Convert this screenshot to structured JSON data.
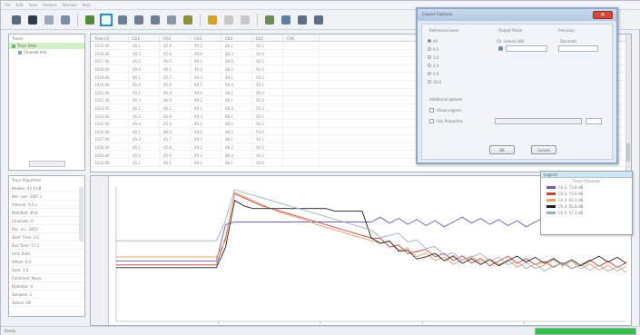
{
  "menubar": {
    "items": [
      "File",
      "Edit",
      "View",
      "Analyze",
      "Window",
      "Help"
    ]
  },
  "toolbar": {
    "buttons": [
      {
        "icon": "arrow-icon",
        "color": "#5a6b80"
      },
      {
        "icon": "save-icon",
        "color": "#2f3a4a"
      },
      {
        "icon": "page-icon",
        "color": "#9aa7b6"
      },
      {
        "icon": "sort-icon",
        "color": "#7d8fa6"
      },
      {
        "icon": "table-icon",
        "color": "#4f8a3a"
      },
      {
        "icon": "chart-icon",
        "color": "#3aa0c8",
        "active": true
      },
      {
        "icon": "grid-icon",
        "color": "#6d7f95"
      },
      {
        "icon": "grid2-icon",
        "color": "#6d7f95"
      },
      {
        "icon": "grid3-icon",
        "color": "#6d7f95"
      },
      {
        "icon": "window-icon",
        "color": "#8b98a8"
      },
      {
        "icon": "filter-icon",
        "color": "#8c8f3a"
      },
      {
        "icon": "warning-icon",
        "color": "#d8a22a"
      },
      {
        "icon": "pen-icon",
        "color": "#c8c8c8"
      },
      {
        "icon": "pen2-icon",
        "color": "#c8c8c8"
      },
      {
        "icon": "data-icon",
        "color": "#6e8a5a"
      },
      {
        "icon": "export-icon",
        "color": "#5e7fa3"
      },
      {
        "icon": "link-icon",
        "color": "#5f6f83"
      },
      {
        "icon": "print-icon",
        "color": "#5f6f83"
      }
    ]
  },
  "tree": {
    "header": "Traces",
    "items": [
      "Trace Data",
      "Channel Info"
    ]
  },
  "properties": {
    "header": "Trace Properties",
    "rows": [
      "Header: 42.0 kB",
      "Rec. Len: 1007 s",
      "Interval: 0.5 s",
      "Modified: 40.0",
      "Channels: 6",
      "Rec. no.: 3452",
      "Start Time: 2.0",
      "End Time: 57.2",
      "Unit: Rate",
      "Offset: 0.0",
      "Gain: 1.0",
      "Comment: None",
      "Operator: 4",
      "Samples: 1",
      "Status: OK"
    ]
  },
  "grid": {
    "headers": [
      "Time [s]",
      "Ch1",
      "Ch2",
      "Ch3",
      "Ch4",
      "Ch5",
      "Ch6"
    ],
    "rows": [
      [
        "1015.00",
        "40.1",
        "45.8",
        "49.2",
        "48.1",
        "50.2",
        ""
      ],
      [
        "1016.00",
        "40.3",
        "45.9",
        "49.0",
        "48.3",
        "50.0",
        ""
      ],
      [
        "1017.00",
        "40.2",
        "46.0",
        "49.1",
        "48.0",
        "50.1",
        ""
      ],
      [
        "1018.00",
        "40.4",
        "46.1",
        "49.2",
        "48.2",
        "50.3",
        ""
      ],
      [
        "1019.00",
        "40.1",
        "45.7",
        "49.3",
        "48.1",
        "50.2",
        ""
      ],
      [
        "1020.00",
        "40.0",
        "45.8",
        "49.1",
        "48.4",
        "50.1",
        ""
      ],
      [
        "1021.00",
        "40.2",
        "45.9",
        "49.0",
        "48.2",
        "50.0",
        ""
      ],
      [
        "1022.00",
        "40.3",
        "46.0",
        "49.2",
        "48.1",
        "50.2",
        ""
      ],
      [
        "1023.00",
        "40.1",
        "46.1",
        "49.1",
        "48.3",
        "50.3",
        ""
      ],
      [
        "1024.00",
        "40.2",
        "45.8",
        "49.3",
        "48.2",
        "50.1",
        ""
      ],
      [
        "1025.00",
        "40.4",
        "45.9",
        "49.2",
        "48.0",
        "50.2",
        ""
      ],
      [
        "1026.00",
        "40.1",
        "46.0",
        "49.0",
        "48.3",
        "50.0",
        ""
      ],
      [
        "1027.00",
        "40.3",
        "45.7",
        "49.1",
        "48.1",
        "50.1",
        ""
      ],
      [
        "1028.00",
        "40.2",
        "45.8",
        "49.2",
        "48.2",
        "50.3",
        ""
      ],
      [
        "1029.00",
        "40.0",
        "45.9",
        "49.3",
        "48.4",
        "50.2",
        ""
      ],
      [
        "1030.00",
        "40.1",
        "46.1",
        "49.1",
        "48.1",
        "50.0",
        ""
      ]
    ]
  },
  "dialog": {
    "title": "Export Options",
    "close": "✕",
    "col1_label": "Reference Level",
    "col2_label": "Output Mode",
    "col3_label": "Precision",
    "radios": [
      "All",
      "0.5",
      "1.0",
      "2.0",
      "5.0",
      "10.0"
    ],
    "col2_sub": "Ch. values (dB)",
    "col3_sub": "Decimals",
    "group_label": "Additional options",
    "check1": "Show Legend",
    "check2": "Use Properties",
    "ok": "OK",
    "cancel": "Cancel"
  },
  "legend": {
    "header": "Legend",
    "sub": "Trace Channels",
    "items": [
      {
        "label": "Ch.1: 73.8 dB",
        "color": "#6b5fb5"
      },
      {
        "label": "Ch.2: 73.9 dB",
        "color": "#c8443b"
      },
      {
        "label": "Ch.3: 61.4 dB",
        "color": "#e8a06a"
      },
      {
        "label": "Ch.4: 55.8 dB",
        "color": "#1f1f1f"
      },
      {
        "label": "Ch.5: 57.1 dB",
        "color": "#9ab0c7"
      }
    ]
  },
  "chart_data": {
    "type": "line",
    "x": [
      0,
      10,
      20,
      30,
      40,
      50,
      60,
      70,
      80,
      90,
      100,
      110,
      120,
      130,
      140,
      150,
      160,
      170,
      180,
      190,
      200,
      210,
      220,
      230,
      240,
      250,
      260,
      270,
      280,
      290,
      300,
      310,
      320,
      330,
      340,
      350,
      360,
      370,
      380,
      390,
      400,
      410,
      420,
      430,
      440,
      450,
      460,
      470,
      480,
      490,
      500,
      510,
      520,
      530,
      540,
      550,
      560
    ],
    "series": [
      {
        "name": "Ch.1: 73.8 dB",
        "color": "#6b5fb5",
        "values": [
          45,
          45,
          45,
          45,
          45,
          45,
          45,
          45,
          45,
          45,
          45,
          45,
          72,
          74,
          74,
          74,
          74,
          74,
          74,
          74,
          74,
          74,
          74,
          74,
          74,
          74,
          74,
          74,
          74,
          74,
          74,
          74,
          74,
          74,
          74,
          74,
          74,
          74,
          74,
          74,
          74,
          74,
          74,
          74,
          74,
          74,
          74,
          74,
          74,
          74,
          74,
          74,
          74,
          74,
          74,
          74,
          74
        ]
      },
      {
        "name": "Ch.2: 73.9 dB",
        "color": "#c8443b",
        "values": [
          42,
          42,
          42,
          42,
          42,
          42,
          42,
          42,
          42,
          42,
          42,
          42,
          62,
          95,
          92,
          89,
          86,
          84,
          82,
          80,
          78,
          76,
          74,
          72,
          70,
          68,
          66,
          64,
          62,
          60,
          58,
          56,
          54,
          52,
          50,
          49,
          48,
          47,
          47,
          46,
          46,
          45,
          45,
          45,
          44,
          44,
          44,
          43,
          43,
          43,
          43,
          42,
          42,
          42,
          42,
          42,
          42
        ]
      },
      {
        "name": "Ch.3: 61.4 dB",
        "color": "#e8a06a",
        "values": [
          48,
          48,
          48,
          48,
          48,
          48,
          48,
          48,
          48,
          48,
          48,
          48,
          60,
          96,
          93,
          90,
          87,
          84,
          81,
          79,
          77,
          75,
          72,
          70,
          68,
          66,
          64,
          62,
          60,
          58,
          56,
          54,
          52,
          50,
          49,
          48,
          47,
          46,
          46,
          45,
          45,
          44,
          44,
          44,
          43,
          43,
          43,
          42,
          42,
          42,
          42,
          41,
          41,
          41,
          41,
          41,
          41
        ]
      },
      {
        "name": "Ch.4: 55.8 dB",
        "color": "#1f1f1f",
        "values": [
          40,
          40,
          40,
          40,
          40,
          40,
          40,
          40,
          40,
          40,
          40,
          40,
          55,
          90,
          86,
          84,
          84,
          84,
          84,
          84,
          84,
          84,
          84,
          84,
          82,
          82,
          82,
          82,
          62,
          60,
          58,
          55,
          52,
          50,
          48,
          47,
          46,
          46,
          45,
          45,
          45,
          45,
          45,
          45,
          45,
          45,
          45,
          45,
          45,
          45,
          45,
          45,
          45,
          45,
          45,
          45,
          45
        ]
      },
      {
        "name": "Ch.5: 57.1 dB",
        "color": "#9ab0c7",
        "values": [
          60,
          60,
          60,
          60,
          60,
          60,
          60,
          60,
          60,
          60,
          60,
          60,
          75,
          98,
          96,
          94,
          92,
          90,
          88,
          86,
          84,
          82,
          80,
          78,
          76,
          74,
          72,
          70,
          68,
          66,
          64,
          62,
          60,
          58,
          56,
          54,
          52,
          50,
          49,
          48,
          47,
          46,
          45,
          44,
          43,
          42,
          42,
          41,
          41,
          40,
          40,
          40,
          40,
          40,
          40,
          40,
          40
        ]
      }
    ],
    "ylim": [
      0,
      100
    ],
    "grid": false,
    "legend": "top-right"
  },
  "status": {
    "text": "Ready",
    "progress": 1.0
  }
}
